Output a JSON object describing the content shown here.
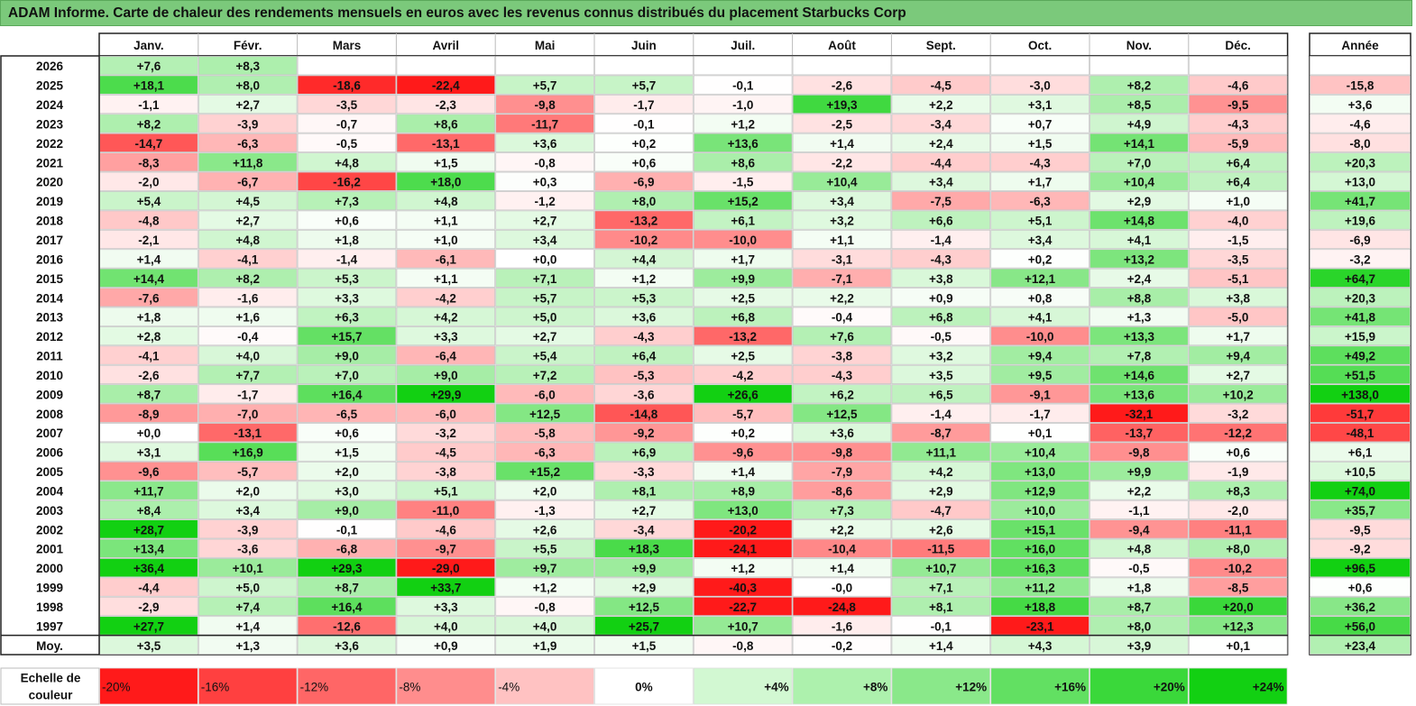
{
  "title": "ADAM Informe. Carte de chaleur des rendements mensuels en euros avec les revenus connus distribués du placement Starbucks Corp",
  "chart_data": {
    "type": "heatmap",
    "title": "ADAM Informe. Carte de chaleur des rendements mensuels en euros avec les revenus connus distribués du placement Starbucks Corp",
    "columns": [
      "Janv.",
      "Févr.",
      "Mars",
      "Avril",
      "Mai",
      "Juin",
      "Juil.",
      "Août",
      "Sept.",
      "Oct.",
      "Nov.",
      "Déc."
    ],
    "year_column_label": "Année",
    "rows": [
      {
        "label": "2026",
        "values": [
          "+7,6",
          "+8,3",
          "",
          "",
          "",
          "",
          "",
          "",
          "",
          "",
          "",
          ""
        ],
        "year": ""
      },
      {
        "label": "2025",
        "values": [
          "+18,1",
          "+8,0",
          "-18,6",
          "-22,4",
          "+5,7",
          "+5,7",
          "-0,1",
          "-2,6",
          "-4,5",
          "-3,0",
          "+8,2",
          "-4,6"
        ],
        "year": "-15,8"
      },
      {
        "label": "2024",
        "values": [
          "-1,1",
          "+2,7",
          "-3,5",
          "-2,3",
          "-9,8",
          "-1,7",
          "-1,0",
          "+19,3",
          "+2,2",
          "+3,1",
          "+8,5",
          "-9,5"
        ],
        "year": "+3,6"
      },
      {
        "label": "2023",
        "values": [
          "+8,2",
          "-3,9",
          "-0,7",
          "+8,6",
          "-11,7",
          "-0,1",
          "+1,2",
          "-2,5",
          "-3,4",
          "+0,7",
          "+4,9",
          "-4,3"
        ],
        "year": "-4,6"
      },
      {
        "label": "2022",
        "values": [
          "-14,7",
          "-6,3",
          "-0,5",
          "-13,1",
          "+3,6",
          "+0,2",
          "+13,6",
          "+1,4",
          "+2,4",
          "+1,5",
          "+14,1",
          "-5,9"
        ],
        "year": "-8,0"
      },
      {
        "label": "2021",
        "values": [
          "-8,3",
          "+11,8",
          "+4,8",
          "+1,5",
          "-0,8",
          "+0,6",
          "+8,6",
          "-2,2",
          "-4,4",
          "-4,3",
          "+7,0",
          "+6,4"
        ],
        "year": "+20,3"
      },
      {
        "label": "2020",
        "values": [
          "-2,0",
          "-6,7",
          "-16,2",
          "+18,0",
          "+0,3",
          "-6,9",
          "-1,5",
          "+10,4",
          "+3,4",
          "+1,7",
          "+10,4",
          "+6,4"
        ],
        "year": "+13,0"
      },
      {
        "label": "2019",
        "values": [
          "+5,4",
          "+4,5",
          "+7,3",
          "+4,8",
          "-1,2",
          "+8,0",
          "+15,2",
          "+3,4",
          "-7,5",
          "-6,3",
          "+2,9",
          "+1,0"
        ],
        "year": "+41,7"
      },
      {
        "label": "2018",
        "values": [
          "-4,8",
          "+2,7",
          "+0,6",
          "+1,1",
          "+2,7",
          "-13,2",
          "+6,1",
          "+3,2",
          "+6,6",
          "+5,1",
          "+14,8",
          "-4,0"
        ],
        "year": "+19,6"
      },
      {
        "label": "2017",
        "values": [
          "-2,1",
          "+4,8",
          "+1,8",
          "+1,0",
          "+3,4",
          "-10,2",
          "-10,0",
          "+1,1",
          "-1,4",
          "+3,4",
          "+4,1",
          "-1,5"
        ],
        "year": "-6,9"
      },
      {
        "label": "2016",
        "values": [
          "+1,4",
          "-4,1",
          "-1,4",
          "-6,1",
          "+0,0",
          "+4,4",
          "+1,7",
          "-3,1",
          "-4,3",
          "+0,2",
          "+13,2",
          "-3,5"
        ],
        "year": "-3,2"
      },
      {
        "label": "2015",
        "values": [
          "+14,4",
          "+8,2",
          "+5,3",
          "+1,1",
          "+7,1",
          "+1,2",
          "+9,9",
          "-7,1",
          "+3,8",
          "+12,1",
          "+2,4",
          "-5,1"
        ],
        "year": "+64,7"
      },
      {
        "label": "2014",
        "values": [
          "-7,6",
          "-1,6",
          "+3,3",
          "-4,2",
          "+5,7",
          "+5,3",
          "+2,5",
          "+2,2",
          "+0,9",
          "+0,8",
          "+8,8",
          "+3,8"
        ],
        "year": "+20,3"
      },
      {
        "label": "2013",
        "values": [
          "+1,8",
          "+1,6",
          "+6,3",
          "+4,2",
          "+5,0",
          "+3,6",
          "+6,8",
          "-0,4",
          "+6,8",
          "+4,1",
          "+1,3",
          "-5,0"
        ],
        "year": "+41,8"
      },
      {
        "label": "2012",
        "values": [
          "+2,8",
          "-0,4",
          "+15,7",
          "+3,3",
          "+2,7",
          "-4,3",
          "-13,2",
          "+7,6",
          "-0,5",
          "-10,0",
          "+13,3",
          "+1,7"
        ],
        "year": "+15,9"
      },
      {
        "label": "2011",
        "values": [
          "-4,1",
          "+4,0",
          "+9,0",
          "-6,4",
          "+5,4",
          "+6,4",
          "+2,5",
          "-3,8",
          "+3,2",
          "+9,4",
          "+7,8",
          "+9,4"
        ],
        "year": "+49,2"
      },
      {
        "label": "2010",
        "values": [
          "-2,6",
          "+7,7",
          "+7,0",
          "+9,0",
          "+7,2",
          "-5,3",
          "-4,2",
          "-4,3",
          "+3,5",
          "+9,5",
          "+14,6",
          "+2,7"
        ],
        "year": "+51,5"
      },
      {
        "label": "2009",
        "values": [
          "+8,7",
          "-1,7",
          "+16,4",
          "+29,9",
          "-6,0",
          "-3,6",
          "+26,6",
          "+6,2",
          "+6,5",
          "-9,1",
          "+13,6",
          "+10,2"
        ],
        "year": "+138,0"
      },
      {
        "label": "2008",
        "values": [
          "-8,9",
          "-7,0",
          "-6,5",
          "-6,0",
          "+12,5",
          "-14,8",
          "-5,7",
          "+12,5",
          "-1,4",
          "-1,7",
          "-32,1",
          "-3,2"
        ],
        "year": "-51,7"
      },
      {
        "label": "2007",
        "values": [
          "+0,0",
          "-13,1",
          "+0,6",
          "-3,2",
          "-5,8",
          "-9,2",
          "+0,2",
          "+3,6",
          "-8,7",
          "+0,1",
          "-13,7",
          "-12,2"
        ],
        "year": "-48,1"
      },
      {
        "label": "2006",
        "values": [
          "+3,1",
          "+16,9",
          "+1,5",
          "-4,5",
          "-6,3",
          "+6,9",
          "-9,6",
          "-9,8",
          "+11,1",
          "+10,4",
          "-9,8",
          "+0,6"
        ],
        "year": "+6,1"
      },
      {
        "label": "2005",
        "values": [
          "-9,6",
          "-5,7",
          "+2,0",
          "-3,8",
          "+15,2",
          "-3,3",
          "+1,4",
          "-7,9",
          "+4,2",
          "+13,0",
          "+9,9",
          "-1,9"
        ],
        "year": "+10,5"
      },
      {
        "label": "2004",
        "values": [
          "+11,7",
          "+2,0",
          "+3,0",
          "+5,1",
          "+2,0",
          "+8,1",
          "+8,9",
          "-8,6",
          "+2,9",
          "+12,9",
          "+2,2",
          "+8,3"
        ],
        "year": "+74,0"
      },
      {
        "label": "2003",
        "values": [
          "+8,4",
          "+3,4",
          "+9,0",
          "-11,0",
          "-1,3",
          "+2,7",
          "+13,0",
          "+7,3",
          "-4,7",
          "+10,0",
          "-1,1",
          "-2,0"
        ],
        "year": "+35,7"
      },
      {
        "label": "2002",
        "values": [
          "+28,7",
          "-3,9",
          "-0,1",
          "-4,6",
          "+2,6",
          "-3,4",
          "-20,2",
          "+2,2",
          "+2,6",
          "+15,1",
          "-9,4",
          "-11,1"
        ],
        "year": "-9,5"
      },
      {
        "label": "2001",
        "values": [
          "+13,4",
          "-3,6",
          "-6,8",
          "-9,7",
          "+5,5",
          "+18,3",
          "-24,1",
          "-10,4",
          "-11,5",
          "+16,0",
          "+4,8",
          "+8,0"
        ],
        "year": "-9,2"
      },
      {
        "label": "2000",
        "values": [
          "+36,4",
          "+10,1",
          "+29,3",
          "-29,0",
          "+9,7",
          "+9,9",
          "+1,2",
          "+1,4",
          "+10,7",
          "+16,3",
          "-0,5",
          "-10,2"
        ],
        "year": "+96,5"
      },
      {
        "label": "1999",
        "values": [
          "-4,4",
          "+5,0",
          "+8,7",
          "+33,7",
          "+1,2",
          "+2,9",
          "-40,3",
          "-0,0",
          "+7,1",
          "+11,2",
          "+1,8",
          "-8,5"
        ],
        "year": "+0,6"
      },
      {
        "label": "1998",
        "values": [
          "-2,9",
          "+7,4",
          "+16,4",
          "+3,3",
          "-0,8",
          "+12,5",
          "-22,7",
          "-24,8",
          "+8,1",
          "+18,8",
          "+8,7",
          "+20,0"
        ],
        "year": "+36,2"
      },
      {
        "label": "1997",
        "values": [
          "+27,7",
          "+1,4",
          "-12,6",
          "+4,0",
          "+4,0",
          "+25,7",
          "+10,7",
          "-1,6",
          "-0,1",
          "-23,1",
          "+8,0",
          "+12,3"
        ],
        "year": "+56,0"
      }
    ],
    "average_row": {
      "label": "Moy.",
      "values": [
        "+3,5",
        "+1,3",
        "+3,6",
        "+0,9",
        "+1,9",
        "+1,5",
        "-0,8",
        "-0,2",
        "+1,4",
        "+4,3",
        "+3,9",
        "+0,1"
      ],
      "year": "+23,4"
    },
    "color_scale": {
      "label_line1": "Echelle de",
      "label_line2": "couleur",
      "stops": [
        {
          "label": "-20%",
          "value": -20,
          "color": "#ff1a1a"
        },
        {
          "label": "-16%",
          "value": -16,
          "color": "#ff4040"
        },
        {
          "label": "-12%",
          "value": -12,
          "color": "#ff6666"
        },
        {
          "label": "-8%",
          "value": -8,
          "color": "#ff8d8d"
        },
        {
          "label": "-4%",
          "value": -4,
          "color": "#ffc2c2"
        },
        {
          "label": "0%",
          "value": 0,
          "color": "#ffffff"
        },
        {
          "label": "+4%",
          "value": 4,
          "color": "#d2f8d2"
        },
        {
          "label": "+8%",
          "value": 8,
          "color": "#adf1ad"
        },
        {
          "label": "+12%",
          "value": 12,
          "color": "#8ae88a"
        },
        {
          "label": "+16%",
          "value": 16,
          "color": "#62e062"
        },
        {
          "label": "+20%",
          "value": 20,
          "color": "#3ad83a"
        },
        {
          "label": "+24%",
          "value": 24,
          "color": "#12d012"
        }
      ]
    },
    "colors": {
      "negative_max": "#ff1a1a",
      "neutral": "#ffffff",
      "positive_max": "#12d012",
      "title_bar": "#7bc97b"
    }
  }
}
